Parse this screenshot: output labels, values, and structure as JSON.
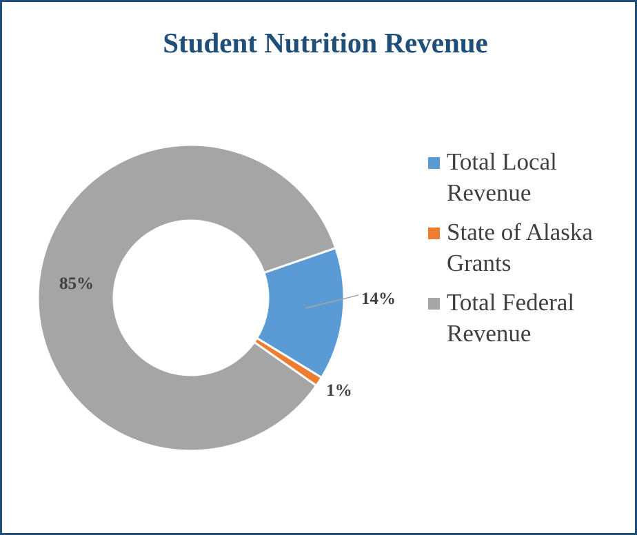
{
  "chart_data": {
    "type": "donut",
    "title": "Student Nutrition Revenue",
    "categories": [
      "Total Local Revenue",
      "State of Alaska Grants",
      "Total Federal Revenue"
    ],
    "values": [
      14,
      1,
      85
    ],
    "value_labels": [
      "14%",
      "1%",
      "85%"
    ],
    "colors": [
      "#5b9bd5",
      "#ed7d31",
      "#a5a5a5"
    ],
    "legend": "right"
  }
}
